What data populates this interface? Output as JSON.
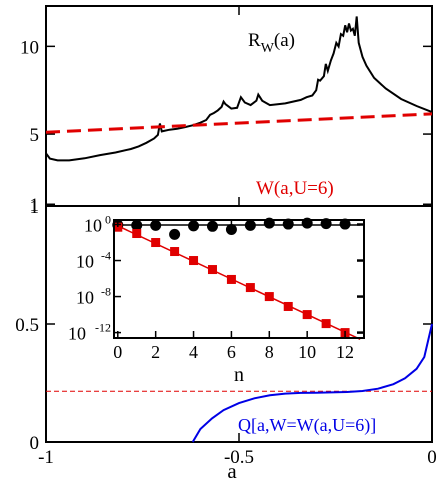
{
  "colors": {
    "black": "#000000",
    "red": "#e00000",
    "blue": "#0000e6",
    "axis": "#000000"
  },
  "top_panel": {
    "annotation_rw_main": "R",
    "annotation_rw_sub": "W",
    "annotation_rw_tail": "(a)",
    "annotation_w": "W(a,U=6)"
  },
  "bottom_panel": {
    "annotation_q": "Q[a,W=W(a,U=6)]"
  },
  "inset": {
    "xlabel": "n"
  },
  "chart_data": [
    {
      "id": "top",
      "type": "line",
      "xlim": [
        -1,
        0
      ],
      "ylim": [
        0.9,
        12.3
      ],
      "yticks": [
        1,
        5,
        10
      ],
      "ytick_labels": [
        "1",
        "5",
        "10"
      ],
      "xticks": [
        -1,
        -0.5,
        0
      ],
      "series": [
        {
          "name": "R_W(a)",
          "style": "solid",
          "color": "#000000",
          "points": [
            [
              -1.0,
              3.9
            ],
            [
              -0.99,
              3.6
            ],
            [
              -0.97,
              3.5
            ],
            [
              -0.94,
              3.5
            ],
            [
              -0.9,
              3.62
            ],
            [
              -0.86,
              3.8
            ],
            [
              -0.82,
              3.95
            ],
            [
              -0.78,
              4.15
            ],
            [
              -0.76,
              4.3
            ],
            [
              -0.74,
              4.5
            ],
            [
              -0.72,
              4.75
            ],
            [
              -0.71,
              4.95
            ],
            [
              -0.705,
              5.6
            ],
            [
              -0.7,
              5.15
            ],
            [
              -0.68,
              5.25
            ],
            [
              -0.66,
              5.3
            ],
            [
              -0.64,
              5.4
            ],
            [
              -0.62,
              5.5
            ],
            [
              -0.6,
              5.65
            ],
            [
              -0.585,
              5.8
            ],
            [
              -0.575,
              6.1
            ],
            [
              -0.565,
              6.2
            ],
            [
              -0.555,
              6.35
            ],
            [
              -0.545,
              6.55
            ],
            [
              -0.54,
              6.85
            ],
            [
              -0.535,
              6.7
            ],
            [
              -0.52,
              6.45
            ],
            [
              -0.505,
              6.5
            ],
            [
              -0.495,
              7.1
            ],
            [
              -0.485,
              6.8
            ],
            [
              -0.47,
              6.65
            ],
            [
              -0.455,
              6.9
            ],
            [
              -0.45,
              7.25
            ],
            [
              -0.44,
              6.9
            ],
            [
              -0.42,
              6.65
            ],
            [
              -0.4,
              6.7
            ],
            [
              -0.38,
              6.75
            ],
            [
              -0.36,
              6.85
            ],
            [
              -0.34,
              6.95
            ],
            [
              -0.325,
              7.1
            ],
            [
              -0.31,
              7.2
            ],
            [
              -0.3,
              7.5
            ],
            [
              -0.295,
              8.1
            ],
            [
              -0.29,
              8.05
            ],
            [
              -0.28,
              8.3
            ],
            [
              -0.275,
              9.0
            ],
            [
              -0.27,
              8.6
            ],
            [
              -0.262,
              9.2
            ],
            [
              -0.255,
              9.6
            ],
            [
              -0.248,
              10.2
            ],
            [
              -0.242,
              10.0
            ],
            [
              -0.236,
              10.7
            ],
            [
              -0.23,
              10.6
            ],
            [
              -0.225,
              11.2
            ],
            [
              -0.22,
              10.8
            ],
            [
              -0.215,
              11.3
            ],
            [
              -0.21,
              10.9
            ],
            [
              -0.205,
              11.0
            ],
            [
              -0.2,
              10.6
            ],
            [
              -0.195,
              11.7
            ],
            [
              -0.19,
              10.2
            ],
            [
              -0.18,
              9.4
            ],
            [
              -0.17,
              8.9
            ],
            [
              -0.15,
              8.2
            ],
            [
              -0.12,
              7.6
            ],
            [
              -0.08,
              7.0
            ],
            [
              -0.04,
              6.6
            ],
            [
              0.0,
              6.25
            ]
          ]
        },
        {
          "name": "W(a,U=6)",
          "style": "dashed",
          "color": "#e00000",
          "points": [
            [
              -1.0,
              5.1
            ],
            [
              0.0,
              6.15
            ]
          ]
        }
      ]
    },
    {
      "id": "bottom",
      "type": "line",
      "xlim": [
        -1,
        0
      ],
      "ylim": [
        0,
        1
      ],
      "yticks": [
        0,
        0.5,
        1
      ],
      "ytick_labels": [
        "0",
        "0.5",
        "1"
      ],
      "xticks": [
        -1,
        -0.5,
        0
      ],
      "xtick_labels": [
        "-1",
        "-0.5",
        "0"
      ],
      "xlabel": "a",
      "series": [
        {
          "name": "Q[a,W=W(a,U=6)]",
          "style": "solid",
          "color": "#0000e6",
          "points": [
            [
              -0.62,
              0.0
            ],
            [
              -0.6,
              0.055
            ],
            [
              -0.57,
              0.1
            ],
            [
              -0.54,
              0.135
            ],
            [
              -0.5,
              0.165
            ],
            [
              -0.46,
              0.185
            ],
            [
              -0.42,
              0.198
            ],
            [
              -0.38,
              0.205
            ],
            [
              -0.34,
              0.208
            ],
            [
              -0.3,
              0.209
            ],
            [
              -0.26,
              0.21
            ],
            [
              -0.22,
              0.212
            ],
            [
              -0.18,
              0.216
            ],
            [
              -0.14,
              0.226
            ],
            [
              -0.1,
              0.245
            ],
            [
              -0.07,
              0.27
            ],
            [
              -0.04,
              0.31
            ],
            [
              -0.02,
              0.36
            ],
            [
              0.0,
              0.5
            ]
          ]
        },
        {
          "name": "reference",
          "style": "dashed",
          "color": "#e00000",
          "points": [
            [
              -1.0,
              0.215
            ],
            [
              0.0,
              0.215
            ]
          ]
        }
      ]
    },
    {
      "id": "inset",
      "type": "scatter",
      "xlim": [
        -0.2,
        13
      ],
      "ylog": true,
      "ylim_log10": [
        -12.6,
        0.5
      ],
      "xticks": [
        0,
        2,
        4,
        6,
        8,
        10,
        12
      ],
      "xtick_labels": [
        "0",
        "2",
        "4",
        "6",
        "8",
        "10",
        "12"
      ],
      "yticks_log10": [
        0,
        -4,
        -8,
        -12
      ],
      "ytick_labels": [
        "10",
        "10",
        "10",
        "10"
      ],
      "ytick_exponents": [
        "0",
        "-4",
        "-8",
        "-12"
      ],
      "xlabel": "n",
      "series": [
        {
          "name": "circles",
          "marker": "circle",
          "color": "#000000",
          "x": [
            0,
            1,
            2,
            3,
            4,
            5,
            6,
            7,
            8,
            9,
            10,
            11,
            12
          ],
          "log10y": [
            -0.05,
            -0.08,
            -0.1,
            -1.1,
            -0.15,
            -0.2,
            -0.55,
            -0.1,
            0.15,
            0.05,
            0.15,
            0.1,
            0.05
          ],
          "fit_log10": [
            [
              0,
              -0.05
            ],
            [
              12.8,
              -0.05
            ]
          ]
        },
        {
          "name": "squares",
          "marker": "square",
          "color": "#e00000",
          "x": [
            0,
            1,
            2,
            3,
            4,
            5,
            6,
            7,
            8,
            9,
            10,
            11,
            12
          ],
          "log10y": [
            -0.3,
            -1.0,
            -2.0,
            -3.0,
            -4.0,
            -5.0,
            -6.1,
            -7.0,
            -8.0,
            -9.1,
            -10.0,
            -11.0,
            -12.0
          ],
          "fit_log10": [
            [
              0,
              -0.15
            ],
            [
              12.8,
              -12.75
            ]
          ]
        }
      ]
    }
  ]
}
